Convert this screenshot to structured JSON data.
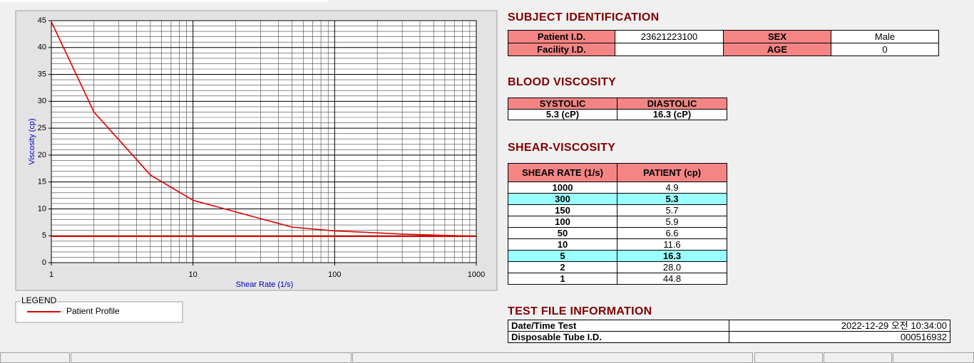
{
  "chart_data": {
    "type": "line",
    "xlabel": "Shear Rate (1/s)",
    "ylabel": "Viscosity (cp)",
    "x": [
      1,
      2,
      5,
      10,
      50,
      100,
      150,
      300,
      1000
    ],
    "series": [
      {
        "name": "Patient Profile",
        "color": "#e00000",
        "values": [
          44.8,
          28.0,
          16.3,
          11.6,
          6.6,
          5.9,
          5.7,
          5.3,
          4.9
        ]
      }
    ],
    "xlim": [
      1,
      1000
    ],
    "ylim": [
      0,
      45
    ],
    "xticks": [
      1,
      10,
      100,
      1000
    ],
    "yticks": [
      0,
      5,
      10,
      15,
      20,
      25,
      30,
      35,
      40,
      45
    ],
    "xscale": "log",
    "grid": true,
    "legend_title": "LEGEND",
    "reference_line": {
      "value": 4.9,
      "color": "#e00000"
    }
  },
  "subject_identification": {
    "title": "SUBJECT IDENTIFICATION",
    "rows": [
      [
        "Patient I.D.",
        "23621223100",
        "SEX",
        "Male"
      ],
      [
        "Facility I.D.",
        null,
        "AGE",
        "0"
      ]
    ]
  },
  "blood_viscosity": {
    "title": "BLOOD VISCOSITY",
    "header": [
      "SYSTOLIC",
      "DIASTOLIC"
    ],
    "rows": [
      [
        "5.3 (cP)",
        "16.3 (cP)"
      ]
    ]
  },
  "shear_viscosity": {
    "title": "SHEAR-VISCOSITY",
    "header": [
      "SHEAR RATE (1/s)",
      "PATIENT (cp)"
    ],
    "rows": [
      [
        "1000",
        "4.9"
      ],
      [
        "300",
        "5.3"
      ],
      [
        "150",
        "5.7"
      ],
      [
        "100",
        "5.9"
      ],
      [
        "50",
        "6.6"
      ],
      [
        "10",
        "11.6"
      ],
      [
        "5",
        "16.3"
      ],
      [
        "2",
        "28.0"
      ],
      [
        "1",
        "44.8"
      ]
    ],
    "highlight_rows": [
      1,
      6
    ]
  },
  "test_file_information": {
    "title": "TEST FILE INFORMATION",
    "rows": [
      [
        "Date/Time Test",
        "2022-12-29  오전 10:34:00"
      ],
      [
        "Disposable Tube I.D.",
        "000516932"
      ]
    ]
  }
}
